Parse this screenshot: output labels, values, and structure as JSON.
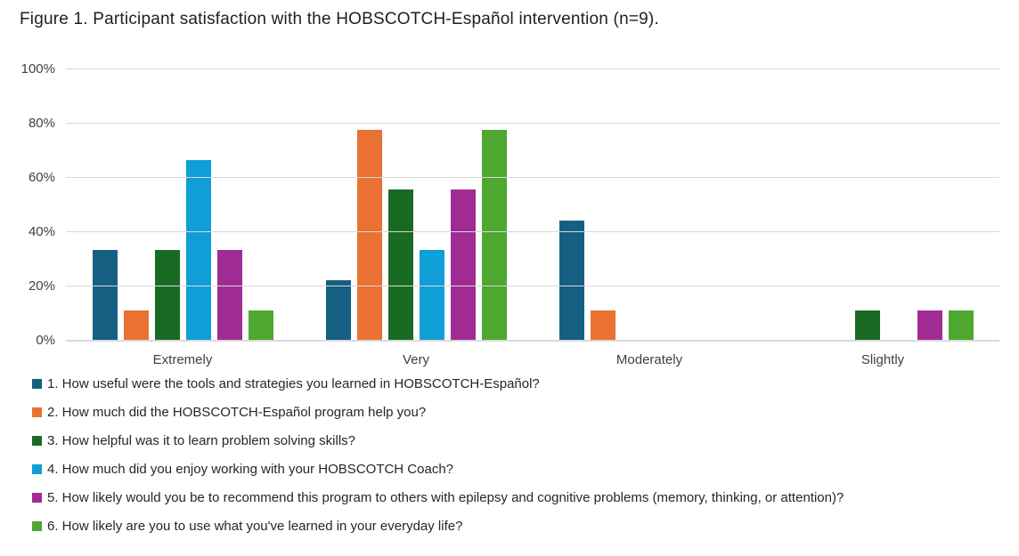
{
  "chart_data": {
    "type": "bar",
    "title": "Figure 1. Participant satisfaction with the HOBSCOTCH-Español intervention (n=9).",
    "categories": [
      "Extremely",
      "Very",
      "Moderately",
      "Slightly"
    ],
    "series": [
      {
        "name": "1. How useful were the tools and strategies you learned in HOBSCOTCH-Español?",
        "color": "#156082",
        "values": [
          33.3,
          22.2,
          44.4,
          0
        ]
      },
      {
        "name": "2. How much did the HOBSCOTCH-Español program help you?",
        "color": "#E97132",
        "values": [
          11.1,
          77.8,
          11.1,
          0
        ]
      },
      {
        "name": "3. How helpful was it to learn problem solving skills?",
        "color": "#196B24",
        "values": [
          33.3,
          55.6,
          0,
          11.1
        ]
      },
      {
        "name": "4. How much did you enjoy working with your HOBSCOTCH Coach?",
        "color": "#0F9ED5",
        "values": [
          66.7,
          33.3,
          0,
          0
        ]
      },
      {
        "name": "5. How likely would you be to recommend this program to others with epilepsy and cognitive problems (memory, thinking, or attention)?",
        "color": "#A02B93",
        "values": [
          33.3,
          55.6,
          0,
          11.1
        ]
      },
      {
        "name": "6. How likely are you to use what you've learned in your everyday life?",
        "color": "#4EA72E",
        "values": [
          11.1,
          77.8,
          0,
          11.1
        ]
      }
    ],
    "y_ticks": [
      {
        "label": "0%",
        "value": 0
      },
      {
        "label": "20%",
        "value": 20
      },
      {
        "label": "40%",
        "value": 40
      },
      {
        "label": "60%",
        "value": 60
      },
      {
        "label": "80%",
        "value": 80
      },
      {
        "label": "100%",
        "value": 100
      }
    ],
    "ylim": [
      0,
      100
    ],
    "xlabel": "",
    "ylabel": "",
    "grid": true,
    "legend_position": "bottom-left"
  },
  "colors": {
    "gridline": "#d9d9d9",
    "axis_text": "#404040",
    "title_text": "#1f1f1f",
    "background": "#ffffff"
  }
}
